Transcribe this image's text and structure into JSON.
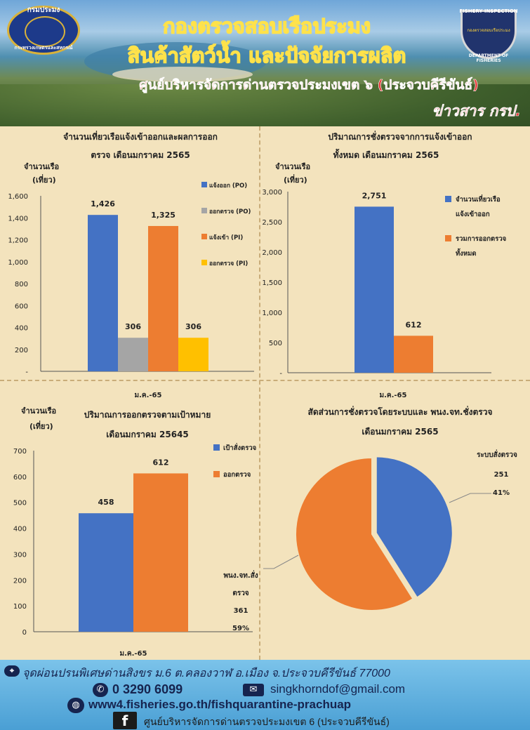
{
  "header": {
    "title_line1": "กองตรวจสอบเรือประมง",
    "title_line2": "สินค้าสัตว์น้ำ และปัจจัยการผลิต",
    "title_line3": "ศูนย์บริหารจัดการด่านตรวจประมงเขต ๖ (ประจวบคีรีขันธ์)",
    "title_line4": "ข่าวสาร กรป.",
    "logo_left_top": "กรมประมง",
    "logo_left_bottom": "กระทรวงเกษตรและสหกรณ์",
    "logo_right_top": "FISHERY INSPECTION",
    "logo_right_bottom": "DEPARTMENT OF FISHERIES",
    "logo_right_mid": "กองตรวจสอบเรือประมง"
  },
  "colors": {
    "blue": "#4472c4",
    "gray": "#a5a5a5",
    "orange": "#ed7d31",
    "yellow": "#ffc000",
    "bg": "#f3e3bd"
  },
  "chart_data": [
    {
      "type": "bar",
      "title_line1": "จำนวนเที่ยวเรือแจ้งเข้าออกและผลการออก",
      "title_line2": "ตรวจ เดือนมกราคม 2565",
      "ylabel_line1": "จำนวนเรือ",
      "ylabel_line2": "(เที่ยว)",
      "categories": [
        "ม.ค.-65"
      ],
      "series": [
        {
          "name": "แจ้งออก (PO)",
          "values": [
            1426
          ],
          "label": "1,426"
        },
        {
          "name": "ออกตรวจ (PO)",
          "values": [
            306
          ],
          "label": "306"
        },
        {
          "name": "แจ้งเข้า (PI)",
          "values": [
            1325
          ],
          "label": "1,325"
        },
        {
          "name": "ออกตรวจ (PI)",
          "values": [
            306
          ],
          "label": "306"
        }
      ],
      "ylim": [
        0,
        1600
      ],
      "yticks": [
        "-",
        "200",
        "400",
        "600",
        "800",
        "1,000",
        "1,200",
        "1,400",
        "1,600"
      ]
    },
    {
      "type": "bar",
      "title_line1": "ปริมาณการชั่งตรวจจากการแจ้งเข้าออก",
      "title_line2": "ทั้งหมด เดือนมกราคม 2565",
      "ylabel_line1": "จำนวนเรือ",
      "ylabel_line2": "(เที่ยว)",
      "categories": [
        "ม.ค.-65"
      ],
      "series": [
        {
          "name": "จำนวนเที่ยวเรือแจ้งเข้าออก",
          "name_line1": "จำนวนเที่ยวเรือ",
          "name_line2": "แจ้งเข้าออก",
          "values": [
            2751
          ],
          "label": "2,751"
        },
        {
          "name": "รวมการออกตรวจทั้งหมด",
          "name_line1": "รวมการออกตรวจ",
          "name_line2": "ทั้งหมด",
          "values": [
            612
          ],
          "label": "612"
        }
      ],
      "ylim": [
        0,
        3000
      ],
      "yticks": [
        "-",
        "500",
        "1,000",
        "1,500",
        "2,000",
        "2,500",
        "3,000"
      ]
    },
    {
      "type": "bar",
      "title_line1": "ปริมาณการออกตรวจตามเป้าหมาย",
      "title_line2": "เดือนมกราคม 25645",
      "ylabel_line1": "จำนวนเรือ",
      "ylabel_line2": "(เที่ยว)",
      "categories": [
        "ม.ค.-65"
      ],
      "series": [
        {
          "name": "เป้าสั่งตรวจ",
          "values": [
            458
          ],
          "label": "458"
        },
        {
          "name": "ออกตรวจ",
          "values": [
            612
          ],
          "label": "612"
        }
      ],
      "ylim": [
        0,
        700
      ],
      "yticks": [
        "0",
        "100",
        "200",
        "300",
        "400",
        "500",
        "600",
        "700"
      ]
    },
    {
      "type": "pie",
      "title_line1": "สัดส่วนการชั่งตรวจโดยระบบและ พนง.จท.ชั่งตรวจ",
      "title_line2": "เดือนมกราคม 2565",
      "slices": [
        {
          "name": "ระบบสั่งตรวจ",
          "value": 251,
          "percent": "41%"
        },
        {
          "name": "พนง.จท.สั่งตรวจ",
          "name_line1": "พนง.จท.สั่ง",
          "name_line2": "ตรวจ",
          "value": 361,
          "percent": "59%"
        }
      ]
    }
  ],
  "footer": {
    "address": "จุดผ่อนปรนพิเศษด่านสิงขร ม.6 ต.คลองวาฬ อ.เมือง จ.ประจวบคีรีขันธ์ 77000",
    "phone": "0 3290 6099",
    "email": "singkhorndof@gmail.com",
    "website": "www4.fisheries.go.th/fishquarantine-prachuap",
    "facebook": "ศูนย์บริหารจัดการด่านตรวจประมงเขต 6 (ประจวบคีรีขันธ์)",
    "fb_glyph": "f"
  }
}
